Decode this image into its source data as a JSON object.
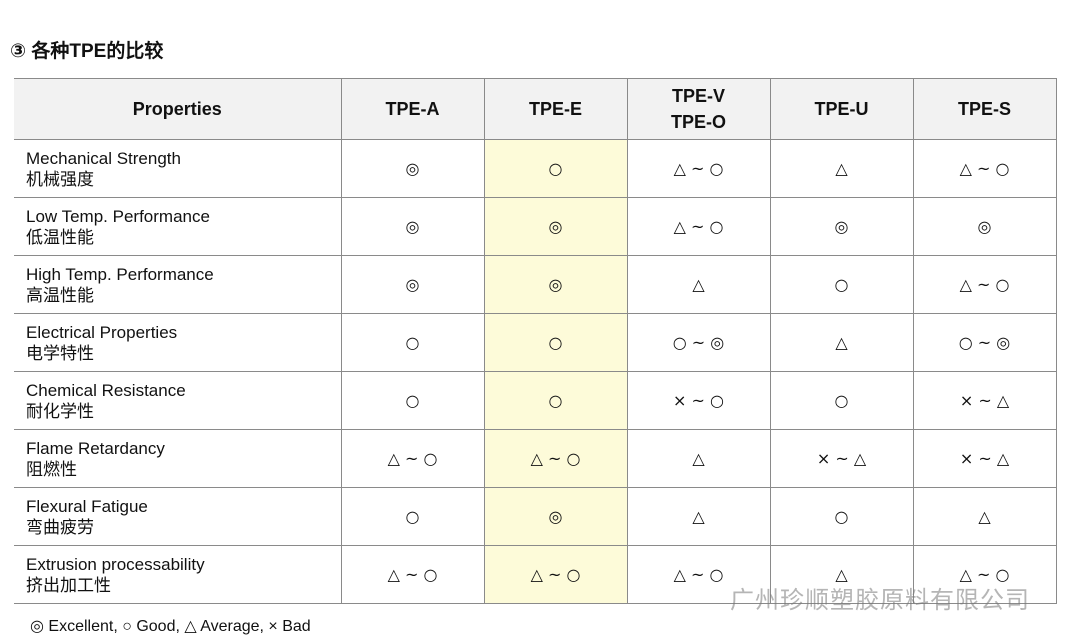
{
  "header": {
    "title": "③ 各种TPE的比较"
  },
  "table": {
    "columns": [
      "Properties",
      "TPE-A",
      "TPE-E",
      [
        "TPE-V",
        "TPE-O"
      ],
      "TPE-U",
      "TPE-S"
    ],
    "rows": [
      {
        "name": "Mechanical Strength",
        "name_zh": "机械强度",
        "ratings": [
          "◎",
          "○",
          "△ ~ ○",
          "△",
          "△ ~ ○"
        ]
      },
      {
        "name": "Low Temp. Performance",
        "name_zh": "低温性能",
        "ratings": [
          "◎",
          "◎",
          "△ ~ ○",
          "◎",
          "◎"
        ]
      },
      {
        "name": "High Temp. Performance",
        "name_zh": "高温性能",
        "ratings": [
          "◎",
          "◎",
          "△",
          "○",
          "△ ~ ○"
        ]
      },
      {
        "name": "Electrical Properties",
        "name_zh": "电学特性",
        "ratings": [
          "○",
          "○",
          "○ ~ ◎",
          "△",
          "○ ~ ◎"
        ]
      },
      {
        "name": "Chemical Resistance",
        "name_zh": "耐化学性",
        "ratings": [
          "○",
          "○",
          "× ~ ○",
          "○",
          "× ~ △"
        ]
      },
      {
        "name": "Flame Retardancy",
        "name_zh": "阻燃性",
        "ratings": [
          "△ ~ ○",
          "△ ~ ○",
          "△",
          "× ~ △",
          "× ~ △"
        ]
      },
      {
        "name": "Flexural Fatigue",
        "name_zh": "弯曲疲劳",
        "ratings": [
          "○",
          "◎",
          "△",
          "○",
          "△"
        ]
      },
      {
        "name": "Extrusion processability",
        "name_zh": "挤出加工性",
        "ratings": [
          "△ ~ ○",
          "△ ~ ○",
          "△ ~ ○",
          "△",
          "△ ~ ○"
        ]
      }
    ]
  },
  "legend": "◎ Excellent, ○ Good, △ Average, × Bad",
  "watermark": "广州珍顺塑胶原料有限公司"
}
